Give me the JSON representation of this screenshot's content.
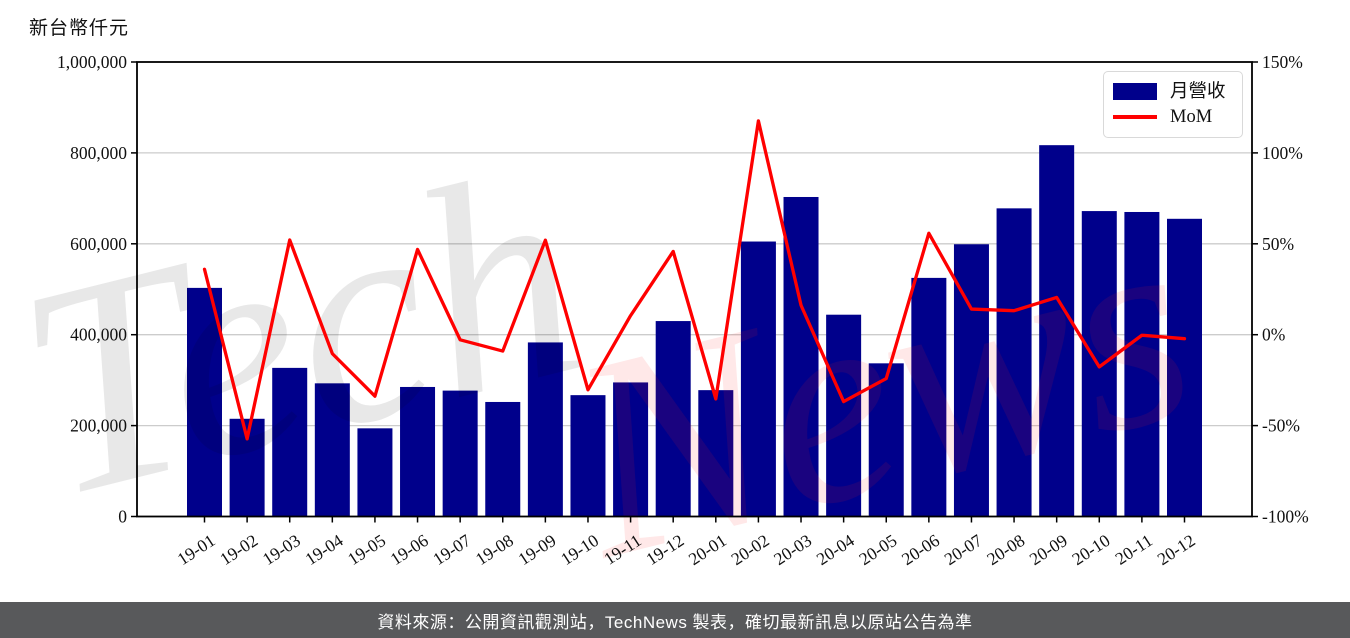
{
  "chart_data": {
    "type": "bar+line",
    "categories": [
      "19-01",
      "19-02",
      "19-03",
      "19-04",
      "19-05",
      "19-06",
      "19-07",
      "19-08",
      "19-09",
      "19-10",
      "19-11",
      "19-12",
      "20-01",
      "20-02",
      "20-03",
      "20-04",
      "20-05",
      "20-06",
      "20-07",
      "20-08",
      "20-09",
      "20-10",
      "20-11",
      "20-12"
    ],
    "series": [
      {
        "name": "月營收",
        "type": "bar",
        "axis": "left",
        "color": "#00008B",
        "values": [
          503000,
          215000,
          327000,
          293000,
          194000,
          285000,
          277000,
          252000,
          383000,
          267000,
          295000,
          430000,
          278000,
          605000,
          703000,
          444000,
          337000,
          525000,
          599000,
          678000,
          817000,
          672000,
          670000,
          655000
        ]
      },
      {
        "name": "MoM",
        "type": "line",
        "axis": "right",
        "color": "#FF0000",
        "unit": "%",
        "values": [
          36.0,
          -57.3,
          52.1,
          -10.4,
          -33.8,
          46.9,
          -2.8,
          -9.0,
          52.0,
          -30.3,
          10.5,
          45.8,
          -35.3,
          117.6,
          16.2,
          -36.8,
          -24.1,
          55.8,
          14.1,
          13.2,
          20.5,
          -17.7,
          -0.3,
          -2.2
        ]
      }
    ],
    "left_axis": {
      "title": "新台幣仟元",
      "range": [
        0,
        1000000
      ],
      "ticks": [
        0,
        200000,
        400000,
        600000,
        800000,
        1000000
      ],
      "tick_labels": [
        "0",
        "200,000",
        "400,000",
        "600,000",
        "800,000",
        "1,000,000"
      ]
    },
    "right_axis": {
      "range": [
        -100,
        150
      ],
      "ticks": [
        -100,
        -50,
        0,
        50,
        100,
        150
      ],
      "unit": "%",
      "tick_labels": [
        "-100%",
        "-50%",
        "0%",
        "50%",
        "100%",
        "150%"
      ]
    },
    "grid": "horizontal",
    "legend_position": "top-right",
    "x_label_rotation_deg": 33
  },
  "legend": {
    "items": [
      {
        "label": "月營收",
        "swatch": "bar",
        "color": "#00008B"
      },
      {
        "label": "MoM",
        "swatch": "line",
        "color": "#FF0000"
      }
    ]
  },
  "watermark": {
    "text": "TechNews",
    "part_gray": "Tech",
    "part_pink": "News"
  },
  "footer": {
    "text": "資料來源：公開資訊觀測站，TechNews 製表，確切最新訊息以原站公告為準"
  },
  "colors": {
    "bar": "#00008B",
    "line": "#FF0000",
    "grid": "#cccccc",
    "spine": "#000000",
    "footer_bg": "#58595B",
    "watermark_gray": "rgba(0,0,0,0.09)",
    "watermark_pink": "rgba(255,30,30,0.10)"
  }
}
